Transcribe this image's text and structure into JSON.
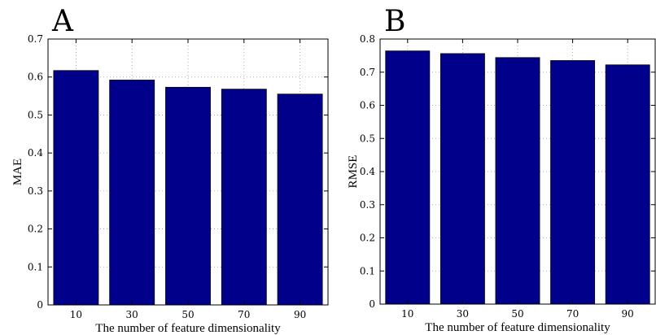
{
  "chart_data": [
    {
      "type": "bar",
      "panel": "A",
      "categories": [
        "10",
        "30",
        "50",
        "70",
        "90"
      ],
      "values": [
        0.617,
        0.592,
        0.573,
        0.568,
        0.555
      ],
      "xlabel": "The number of feature dimensionality",
      "ylabel": "MAE",
      "ylim": [
        0,
        0.7
      ],
      "yticks": [
        "0",
        "0.1",
        "0.2",
        "0.3",
        "0.4",
        "0.5",
        "0.6",
        "0.7"
      ],
      "grid": true,
      "color": "#00008b"
    },
    {
      "type": "bar",
      "panel": "B",
      "categories": [
        "10",
        "30",
        "50",
        "70",
        "90"
      ],
      "values": [
        0.764,
        0.756,
        0.744,
        0.735,
        0.722
      ],
      "xlabel": "The number of feature dimensionality",
      "ylabel": "RMSE",
      "ylim": [
        0,
        0.8
      ],
      "yticks": [
        "0",
        "0.1",
        "0.2",
        "0.3",
        "0.4",
        "0.5",
        "0.6",
        "0.7",
        "0.8"
      ],
      "grid": true,
      "color": "#00008b"
    }
  ]
}
